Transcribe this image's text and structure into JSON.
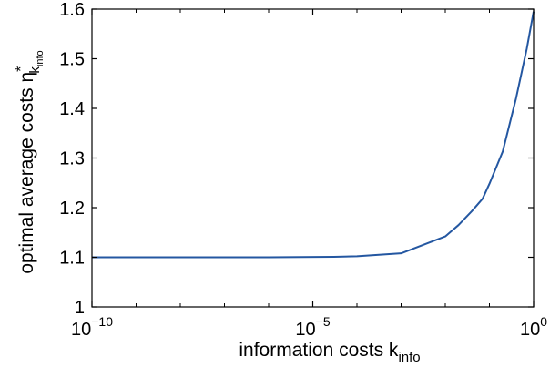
{
  "chart_data": {
    "type": "line",
    "xscale": "log",
    "xlabel": {
      "text": "information costs k",
      "subscript": "info"
    },
    "ylabel": {
      "text": "optimal average costs η",
      "superscript": "*",
      "subscript": "k",
      "sub_subscript": "info"
    },
    "xlim": [
      1e-10,
      1
    ],
    "ylim": [
      1,
      1.6
    ],
    "xticks": [
      {
        "value": 1e-10,
        "base": "10",
        "exponent": "−10"
      },
      {
        "value": 1e-05,
        "base": "10",
        "exponent": "−5"
      },
      {
        "value": 1,
        "base": "10",
        "exponent": "0"
      }
    ],
    "yticks": [
      {
        "value": 1,
        "label": "1"
      },
      {
        "value": 1.1,
        "label": "1.1"
      },
      {
        "value": 1.2,
        "label": "1.2"
      },
      {
        "value": 1.3,
        "label": "1.3"
      },
      {
        "value": 1.4,
        "label": "1.4"
      },
      {
        "value": 1.5,
        "label": "1.5"
      },
      {
        "value": 1.6,
        "label": "1.6"
      }
    ],
    "grid": false,
    "series": [
      {
        "color": "#2457a1",
        "x": [
          1e-10,
          1e-08,
          1e-06,
          3e-05,
          0.0001,
          0.001,
          0.01,
          0.02,
          0.04,
          0.07,
          0.1,
          0.2,
          0.4,
          0.7,
          1
        ],
        "y": [
          1.1,
          1.1,
          1.1,
          1.101,
          1.102,
          1.108,
          1.142,
          1.165,
          1.193,
          1.218,
          1.248,
          1.313,
          1.42,
          1.52,
          1.595
        ]
      }
    ]
  }
}
